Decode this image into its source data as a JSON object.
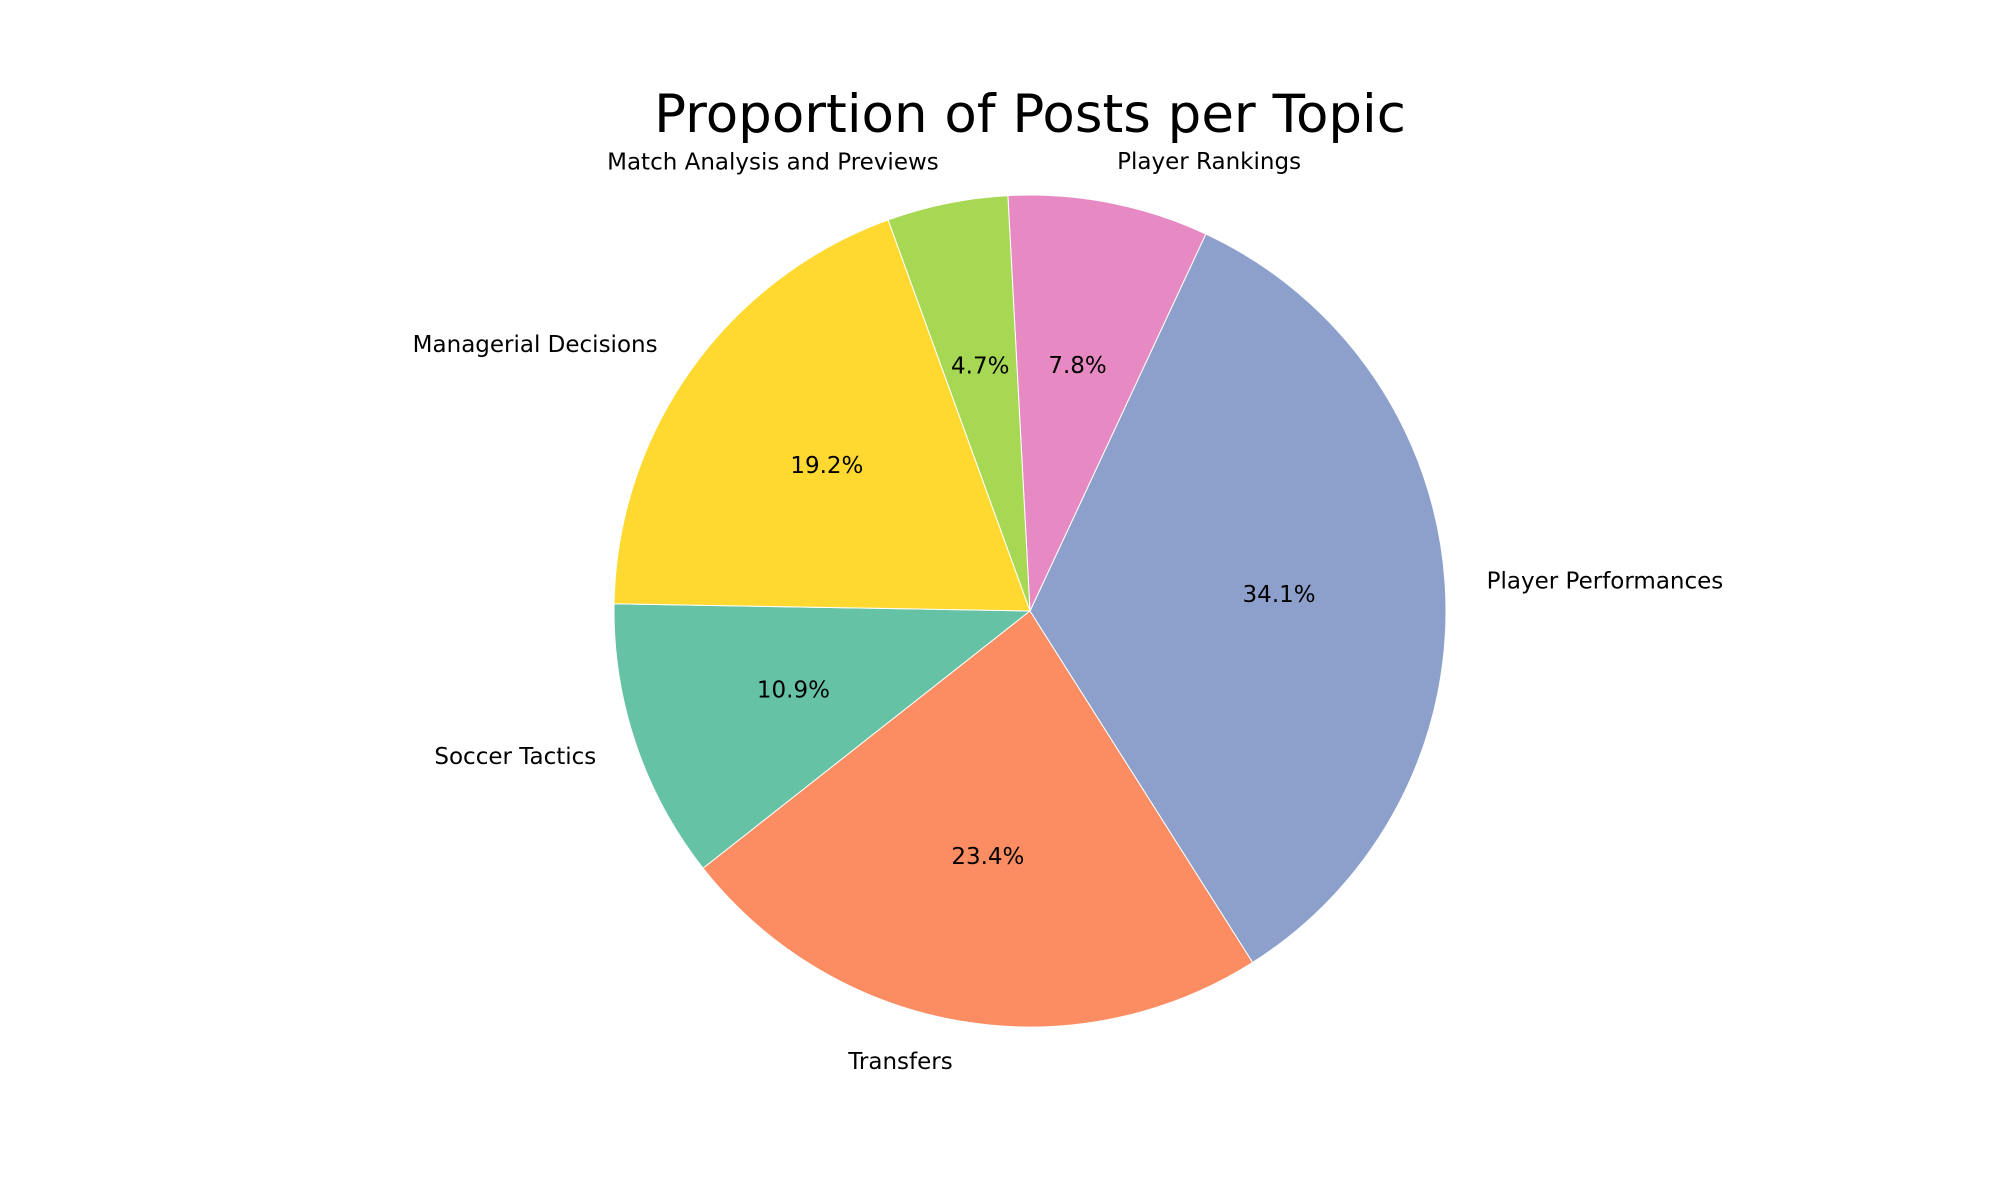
{
  "chart_data": {
    "type": "pie",
    "title": "Proportion of Posts per Topic",
    "start_angle_deg": 179,
    "direction": "counterclockwise",
    "legend": "none",
    "slices": [
      {
        "label": "Soccer Tactics",
        "value": 10.9,
        "pct_label": "10.9%",
        "color": "#66c2a5"
      },
      {
        "label": "Transfers",
        "value": 23.4,
        "pct_label": "23.4%",
        "color": "#fc8d62"
      },
      {
        "label": "Player Performances",
        "value": 34.1,
        "pct_label": "34.1%",
        "color": "#8da0cb"
      },
      {
        "label": "Player Rankings",
        "value": 7.8,
        "pct_label": "7.8%",
        "color": "#e78ac3"
      },
      {
        "label": "Match Analysis and Previews",
        "value": 4.7,
        "pct_label": "4.7%",
        "color": "#a6d854"
      },
      {
        "label": "Managerial Decisions",
        "value": 19.2,
        "pct_label": "19.2%",
        "color": "#ffd92f"
      }
    ]
  }
}
